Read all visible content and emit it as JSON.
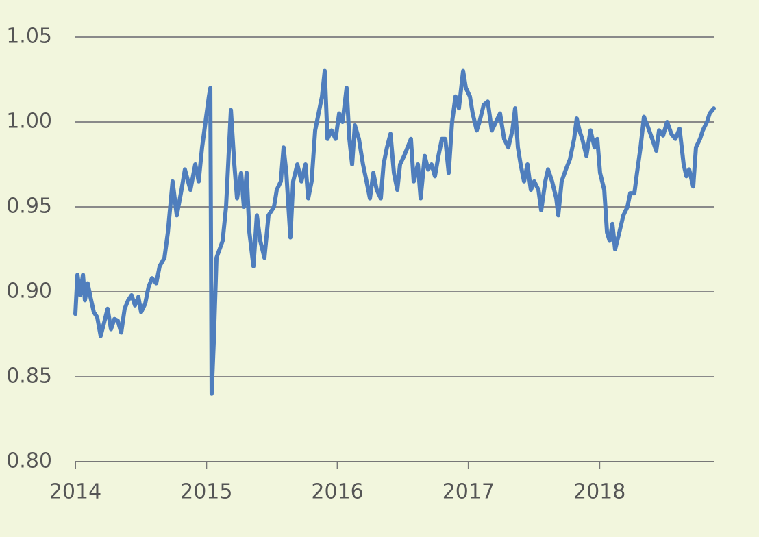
{
  "chart_data": {
    "type": "line",
    "x": [
      2014,
      2014.016,
      2014.037,
      2014.058,
      2014.073,
      2014.094,
      2014.115,
      2014.141,
      2014.167,
      2014.193,
      2014.22,
      2014.246,
      2014.272,
      2014.298,
      2014.324,
      2014.35,
      2014.376,
      2014.403,
      2014.429,
      2014.455,
      2014.481,
      2014.502,
      2014.533,
      2014.559,
      2014.585,
      2014.617,
      2014.643,
      2014.68,
      2014.706,
      2014.742,
      2014.774,
      2014.81,
      2014.836,
      2014.878,
      2014.915,
      2014.941,
      2014.967,
      2014.993,
      2015.019,
      2015.03,
      2015.04,
      2015.056,
      2015.077,
      2015.124,
      2015.15,
      2015.187,
      2015.213,
      2015.234,
      2015.265,
      2015.286,
      2015.307,
      2015.328,
      2015.359,
      2015.385,
      2015.411,
      2015.443,
      2015.474,
      2015.516,
      2015.537,
      2015.568,
      2015.589,
      2015.61,
      2015.641,
      2015.662,
      2015.694,
      2015.725,
      2015.756,
      2015.777,
      2015.803,
      2015.83,
      2015.856,
      2015.882,
      2015.903,
      2015.924,
      2015.955,
      2015.986,
      2016.013,
      2016.039,
      2016.07,
      2016.091,
      2016.112,
      2016.133,
      2016.164,
      2016.195,
      2016.222,
      2016.248,
      2016.274,
      2016.3,
      2016.331,
      2016.352,
      2016.378,
      2016.405,
      2016.431,
      2016.457,
      2016.478,
      2016.509,
      2016.535,
      2016.561,
      2016.582,
      2016.614,
      2016.635,
      2016.666,
      2016.692,
      2016.718,
      2016.744,
      2016.771,
      2016.797,
      2016.823,
      2016.849,
      2016.875,
      2016.901,
      2016.927,
      2016.959,
      2016.98,
      2017.011,
      2017.032,
      2017.063,
      2017.084,
      2017.116,
      2017.147,
      2017.178,
      2017.21,
      2017.241,
      2017.272,
      2017.304,
      2017.335,
      2017.356,
      2017.377,
      2017.398,
      2017.424,
      2017.45,
      2017.476,
      2017.502,
      2017.534,
      2017.555,
      2017.586,
      2017.607,
      2017.638,
      2017.67,
      2017.685,
      2017.711,
      2017.743,
      2017.774,
      2017.806,
      2017.826,
      2017.847,
      2017.868,
      2017.9,
      2017.931,
      2017.962,
      2017.983,
      2018.004,
      2018.036,
      2018.057,
      2018.077,
      2018.098,
      2018.119,
      2018.151,
      2018.182,
      2018.213,
      2018.234,
      2018.266,
      2018.286,
      2018.313,
      2018.339,
      2018.37,
      2018.402,
      2018.433,
      2018.454,
      2018.485,
      2018.516,
      2018.548,
      2018.579,
      2018.611,
      2018.642,
      2018.663,
      2018.684,
      2018.715,
      2018.736,
      2018.767,
      2018.788,
      2018.82,
      2018.841,
      2018.872
    ],
    "series": [
      {
        "color": "#4f7ebd",
        "values": [
          0.887,
          0.91,
          0.898,
          0.91,
          0.895,
          0.905,
          0.897,
          0.888,
          0.885,
          0.874,
          0.882,
          0.89,
          0.878,
          0.884,
          0.883,
          0.876,
          0.89,
          0.895,
          0.898,
          0.892,
          0.897,
          0.888,
          0.893,
          0.903,
          0.908,
          0.905,
          0.915,
          0.92,
          0.935,
          0.965,
          0.945,
          0.96,
          0.972,
          0.96,
          0.975,
          0.965,
          0.985,
          1.0,
          1.015,
          1.02,
          0.84,
          0.87,
          0.92,
          0.93,
          0.95,
          1.007,
          0.975,
          0.955,
          0.97,
          0.95,
          0.97,
          0.935,
          0.915,
          0.945,
          0.93,
          0.92,
          0.945,
          0.95,
          0.96,
          0.965,
          0.985,
          0.97,
          0.932,
          0.965,
          0.975,
          0.965,
          0.975,
          0.955,
          0.965,
          0.995,
          1.005,
          1.015,
          1.03,
          0.99,
          0.995,
          0.99,
          1.005,
          1.0,
          1.02,
          0.99,
          0.975,
          0.998,
          0.99,
          0.975,
          0.965,
          0.955,
          0.97,
          0.96,
          0.955,
          0.975,
          0.985,
          0.993,
          0.97,
          0.96,
          0.975,
          0.98,
          0.985,
          0.99,
          0.965,
          0.975,
          0.955,
          0.98,
          0.972,
          0.975,
          0.968,
          0.98,
          0.99,
          0.99,
          0.97,
          1.0,
          1.015,
          1.008,
          1.03,
          1.02,
          1.015,
          1.005,
          0.995,
          1.0,
          1.01,
          1.012,
          0.995,
          1.0,
          1.005,
          0.99,
          0.985,
          0.995,
          1.008,
          0.985,
          0.975,
          0.965,
          0.975,
          0.96,
          0.965,
          0.96,
          0.948,
          0.965,
          0.972,
          0.965,
          0.955,
          0.945,
          0.965,
          0.972,
          0.978,
          0.99,
          1.002,
          0.995,
          0.99,
          0.98,
          0.995,
          0.985,
          0.99,
          0.97,
          0.96,
          0.935,
          0.93,
          0.94,
          0.925,
          0.935,
          0.945,
          0.95,
          0.958,
          0.958,
          0.97,
          0.985,
          1.003,
          0.997,
          0.99,
          0.983,
          0.995,
          0.992,
          1.0,
          0.993,
          0.99,
          0.996,
          0.975,
          0.968,
          0.972,
          0.962,
          0.985,
          0.99,
          0.995,
          1.0,
          1.005,
          1.008
        ]
      }
    ],
    "xlim": [
      2014,
      2018.872
    ],
    "xticks": [
      2014,
      2015,
      2016,
      2017,
      2018
    ],
    "ylim": [
      0.8,
      1.05
    ],
    "yticks": [
      {
        "value": 0.8,
        "label": "0.80"
      },
      0.85,
      {
        "value": 0.9,
        "label": "0.90"
      },
      0.95,
      {
        "value": 1,
        "label": "1.00"
      },
      1.05
    ],
    "grid": true
  }
}
